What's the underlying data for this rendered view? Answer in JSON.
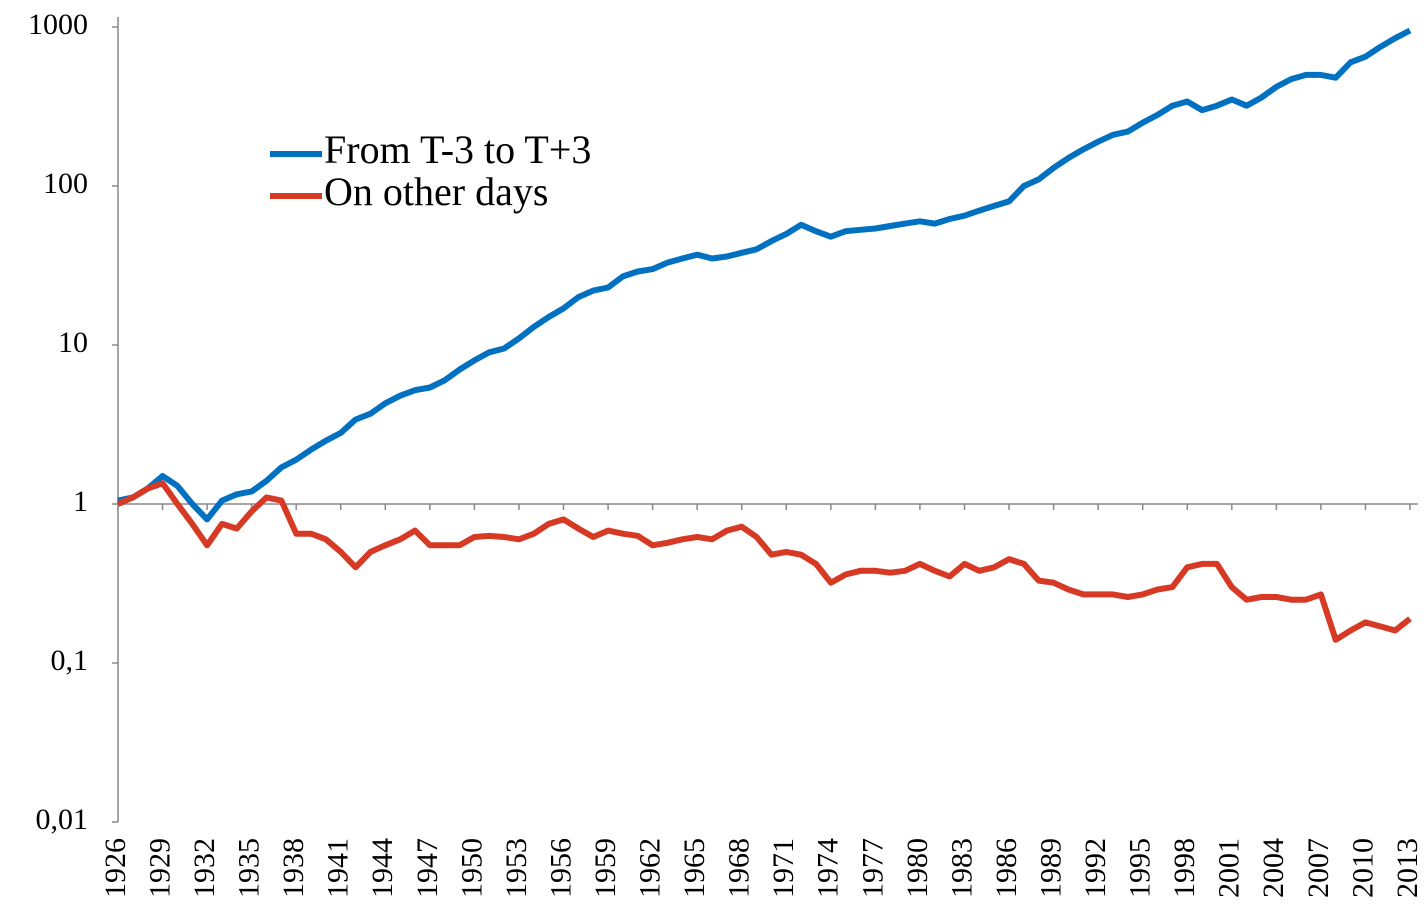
{
  "chart_data": {
    "type": "line",
    "log_scale": true,
    "legend": "upper left",
    "x_axis_crosses": 1,
    "x": [
      1926,
      1927,
      1928,
      1929,
      1930,
      1931,
      1932,
      1933,
      1934,
      1935,
      1936,
      1937,
      1938,
      1939,
      1940,
      1941,
      1942,
      1943,
      1944,
      1945,
      1946,
      1947,
      1948,
      1949,
      1950,
      1951,
      1952,
      1953,
      1954,
      1955,
      1956,
      1957,
      1958,
      1959,
      1960,
      1961,
      1962,
      1963,
      1964,
      1965,
      1966,
      1967,
      1968,
      1969,
      1970,
      1971,
      1972,
      1973,
      1974,
      1975,
      1976,
      1977,
      1978,
      1979,
      1980,
      1981,
      1982,
      1983,
      1984,
      1985,
      1986,
      1987,
      1988,
      1989,
      1990,
      1991,
      1992,
      1993,
      1994,
      1995,
      1996,
      1997,
      1998,
      1999,
      2000,
      2001,
      2002,
      2003,
      2004,
      2005,
      2006,
      2007,
      2008,
      2009,
      2010,
      2011,
      2012,
      2013
    ],
    "series": [
      {
        "name": "From T-3 to T+3",
        "color": "#0070c0",
        "values": [
          1.05,
          1.1,
          1.25,
          1.5,
          1.3,
          1.0,
          0.8,
          1.05,
          1.15,
          1.2,
          1.4,
          1.7,
          1.9,
          2.2,
          2.5,
          2.8,
          3.4,
          3.7,
          4.3,
          4.8,
          5.2,
          5.4,
          6.0,
          7.0,
          8.0,
          9.0,
          9.5,
          11,
          13,
          15,
          17,
          20,
          22,
          23,
          27,
          29,
          30,
          33,
          35,
          37,
          35,
          36,
          38,
          40,
          45,
          50,
          57,
          52,
          48,
          52,
          53,
          54,
          56,
          58,
          60,
          58,
          62,
          65,
          70,
          75,
          80,
          100,
          110,
          130,
          150,
          170,
          190,
          210,
          220,
          250,
          280,
          320,
          340,
          300,
          320,
          350,
          320,
          360,
          420,
          470,
          500,
          500,
          480,
          600,
          650,
          750,
          850,
          950
        ]
      },
      {
        "name": "On other days",
        "color": "#d63a24",
        "values": [
          1.0,
          1.1,
          1.25,
          1.35,
          1.0,
          0.75,
          0.55,
          0.75,
          0.7,
          0.9,
          1.1,
          1.05,
          0.65,
          0.65,
          0.6,
          0.5,
          0.4,
          0.5,
          0.55,
          0.6,
          0.68,
          0.55,
          0.55,
          0.55,
          0.62,
          0.63,
          0.62,
          0.6,
          0.65,
          0.75,
          0.8,
          0.7,
          0.62,
          0.68,
          0.65,
          0.63,
          0.55,
          0.57,
          0.6,
          0.62,
          0.6,
          0.68,
          0.72,
          0.62,
          0.48,
          0.5,
          0.48,
          0.42,
          0.32,
          0.36,
          0.38,
          0.38,
          0.37,
          0.38,
          0.42,
          0.38,
          0.35,
          0.42,
          0.38,
          0.4,
          0.45,
          0.42,
          0.33,
          0.32,
          0.29,
          0.27,
          0.27,
          0.27,
          0.26,
          0.27,
          0.29,
          0.3,
          0.4,
          0.42,
          0.42,
          0.3,
          0.25,
          0.26,
          0.26,
          0.25,
          0.25,
          0.27,
          0.14,
          0.16,
          0.18,
          0.17,
          0.16,
          0.19
        ]
      }
    ],
    "xlim": [
      1926,
      2013
    ],
    "xticks": [
      1926,
      1929,
      1932,
      1935,
      1938,
      1941,
      1944,
      1947,
      1950,
      1953,
      1956,
      1959,
      1962,
      1965,
      1968,
      1971,
      1974,
      1977,
      1980,
      1983,
      1986,
      1989,
      1992,
      1995,
      1998,
      2001,
      2004,
      2007,
      2010,
      2013
    ],
    "ylim": [
      0.01,
      1000
    ],
    "yticks": [
      {
        "value": 0.01,
        "label": "0,01"
      },
      {
        "value": 0.1,
        "label": "0,1"
      },
      1,
      10,
      100,
      1000
    ]
  }
}
